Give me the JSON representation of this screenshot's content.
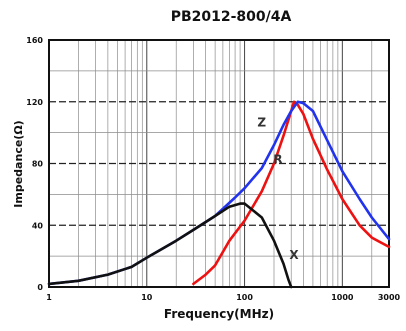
{
  "chart_data": {
    "type": "line",
    "title": "PB2012-800/4A",
    "xlabel": "Frequency(MHz)",
    "ylabel": "Impedance(Ω)",
    "x_scale": "log",
    "xlim": [
      1,
      3000
    ],
    "ylim": [
      0,
      160
    ],
    "x_ticks": [
      1,
      10,
      100,
      1000,
      3000
    ],
    "x_tick_labels": [
      "1",
      "10",
      "100",
      "1000",
      "3000"
    ],
    "y_ticks": [
      0,
      40,
      80,
      120,
      160
    ],
    "y_tick_labels": [
      "0",
      "40",
      "80",
      "120",
      "160"
    ],
    "grid": true,
    "series": [
      {
        "name": "Z",
        "color": "#2233ee",
        "points": [
          [
            1,
            2
          ],
          [
            2,
            4
          ],
          [
            4,
            8
          ],
          [
            7,
            13
          ],
          [
            10,
            19
          ],
          [
            20,
            30
          ],
          [
            30,
            37
          ],
          [
            50,
            46
          ],
          [
            80,
            58
          ],
          [
            100,
            64
          ],
          [
            150,
            77
          ],
          [
            200,
            92
          ],
          [
            250,
            105
          ],
          [
            300,
            114
          ],
          [
            350,
            120
          ],
          [
            400,
            119
          ],
          [
            500,
            114
          ],
          [
            700,
            95
          ],
          [
            1000,
            75
          ],
          [
            1500,
            57
          ],
          [
            2000,
            45
          ],
          [
            3000,
            31
          ]
        ]
      },
      {
        "name": "R",
        "color": "#ee1111",
        "points": [
          [
            30,
            2
          ],
          [
            40,
            8
          ],
          [
            50,
            14
          ],
          [
            70,
            30
          ],
          [
            100,
            43
          ],
          [
            150,
            62
          ],
          [
            200,
            80
          ],
          [
            250,
            98
          ],
          [
            300,
            114
          ],
          [
            320,
            120
          ],
          [
            350,
            118
          ],
          [
            400,
            112
          ],
          [
            500,
            96
          ],
          [
            700,
            76
          ],
          [
            1000,
            57
          ],
          [
            1500,
            40
          ],
          [
            2000,
            32
          ],
          [
            3000,
            26
          ]
        ]
      },
      {
        "name": "X",
        "color": "#111111",
        "points": [
          [
            1,
            2
          ],
          [
            2,
            4
          ],
          [
            4,
            8
          ],
          [
            7,
            13
          ],
          [
            10,
            19
          ],
          [
            20,
            30
          ],
          [
            30,
            37
          ],
          [
            50,
            46
          ],
          [
            70,
            52
          ],
          [
            90,
            54
          ],
          [
            100,
            54
          ],
          [
            150,
            45
          ],
          [
            200,
            30
          ],
          [
            250,
            15
          ],
          [
            280,
            5
          ],
          [
            300,
            0
          ]
        ]
      }
    ],
    "annotations": [
      {
        "text": "Z",
        "x": 150,
        "y": 104
      },
      {
        "text": "R",
        "x": 220,
        "y": 80
      },
      {
        "text": "X",
        "x": 320,
        "y": 18
      }
    ]
  }
}
